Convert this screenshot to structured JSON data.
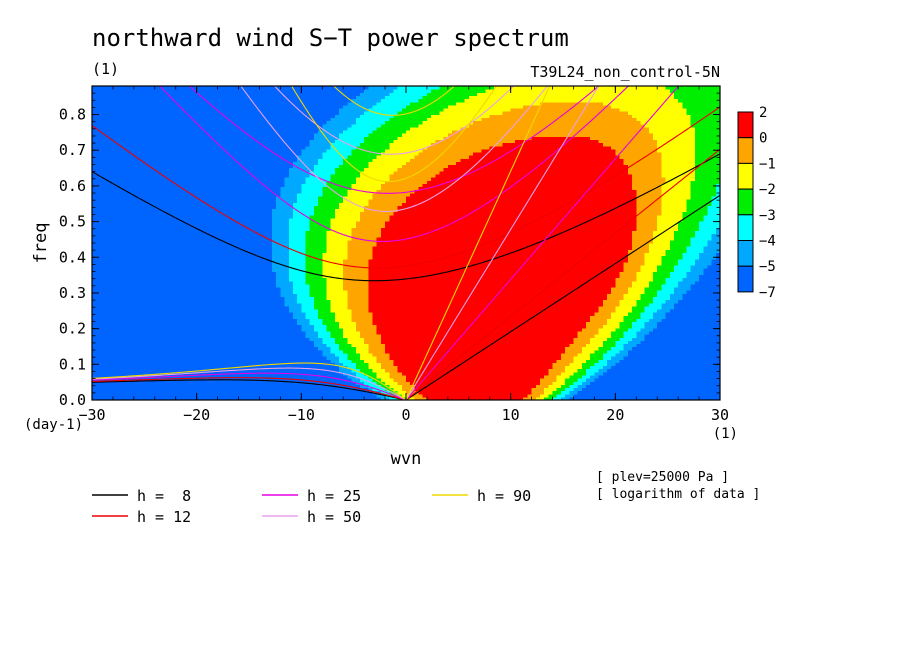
{
  "chart_data": {
    "type": "heatmap",
    "title": "northward wind S−T power spectrum",
    "subtitle_left": "(1)",
    "subtitle_right": "T39L24_non_control-5N",
    "xlabel": "wvn",
    "ylabel": "freq",
    "x_unit": "(1)",
    "y_unit": "(day-1)",
    "xlim": [
      -30,
      30
    ],
    "ylim": [
      0,
      0.88
    ],
    "x_ticks": [
      -30,
      -20,
      -10,
      0,
      10,
      20,
      30
    ],
    "x_tick_labels": [
      "−30",
      "−20",
      "−10",
      "0",
      "10",
      "20",
      "30"
    ],
    "y_ticks": [
      0,
      0.1,
      0.2,
      0.3,
      0.4,
      0.5,
      0.6,
      0.7,
      0.8
    ],
    "y_tick_labels": [
      "0.0",
      "0.1",
      "0.2",
      "0.3",
      "0.4",
      "0.5",
      "0.6",
      "0.7",
      "0.8"
    ],
    "colorbar": {
      "levels": [
        2,
        0,
        -1,
        -2,
        -3,
        -4,
        -5,
        -7
      ],
      "level_labels": [
        "2",
        "0",
        "−1",
        "−2",
        "−3",
        "−4",
        "−5",
        "−7"
      ],
      "colors": [
        "#ff0000",
        "#ffa500",
        "#ffff00",
        "#00ee00",
        "#00ffff",
        "#00a8ff",
        "#0064ff"
      ]
    },
    "dispersion_curves": [
      {
        "name": "h =  8",
        "h": 8,
        "color": "#000000"
      },
      {
        "name": "h = 12",
        "h": 12,
        "color": "#ee0000"
      },
      {
        "name": "h = 25",
        "h": 25,
        "color": "#e600e6"
      },
      {
        "name": "h = 50",
        "h": 50,
        "color": "#e8a0e8"
      },
      {
        "name": "h = 90",
        "h": 90,
        "color": "#f0d800"
      }
    ],
    "notes": [
      "[ plev=25000 Pa ]",
      "[ logarithm of data ]"
    ]
  }
}
